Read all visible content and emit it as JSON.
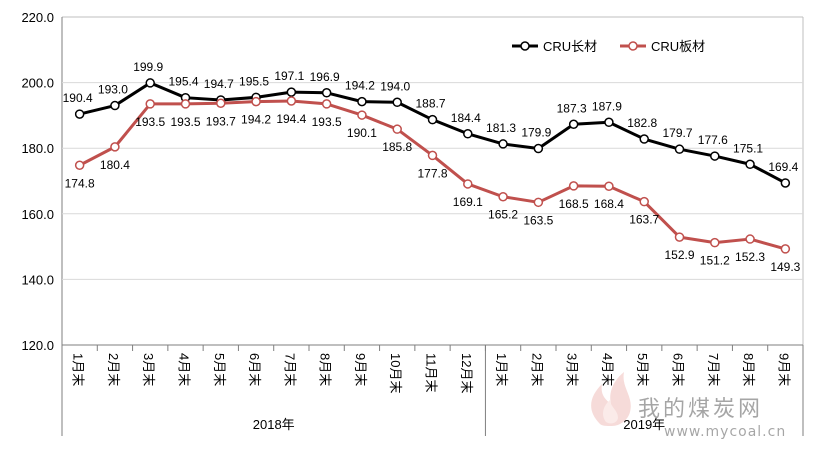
{
  "chart_data": {
    "type": "line",
    "title": "",
    "xlabel": "",
    "ylabel": "",
    "ylim": [
      120,
      220
    ],
    "yticks": [
      "120.0",
      "140.0",
      "160.0",
      "180.0",
      "200.0",
      "220.0"
    ],
    "grid": true,
    "legend_position": "top-right",
    "categories": [
      "1月末",
      "2月末",
      "3月末",
      "4月末",
      "5月末",
      "6月末",
      "7月末",
      "8月末",
      "9月末",
      "10月末",
      "11月末",
      "12月末",
      "1月末",
      "2月末",
      "3月末",
      "4月末",
      "5月末",
      "6月末",
      "7月末",
      "8月末",
      "9月末"
    ],
    "groups": [
      {
        "label": "2018年",
        "count": 12
      },
      {
        "label": "2019年",
        "count": 9
      }
    ],
    "series": [
      {
        "name": "CRU长材",
        "color": "#000000",
        "values": [
          190.4,
          193.0,
          199.9,
          195.4,
          194.7,
          195.5,
          197.1,
          196.9,
          194.2,
          194.0,
          188.7,
          184.4,
          181.3,
          179.9,
          187.3,
          187.9,
          182.8,
          179.7,
          177.6,
          175.1,
          169.4
        ]
      },
      {
        "name": "CRU板材",
        "color": "#c0504d",
        "values": [
          174.8,
          180.4,
          193.5,
          193.5,
          193.7,
          194.2,
          194.4,
          193.5,
          190.1,
          185.8,
          177.8,
          169.1,
          165.2,
          163.5,
          168.5,
          168.4,
          163.7,
          152.9,
          151.2,
          152.3,
          149.3
        ]
      }
    ]
  },
  "watermark": {
    "text": "我的煤炭网",
    "url": "www.mycoal.cn"
  }
}
